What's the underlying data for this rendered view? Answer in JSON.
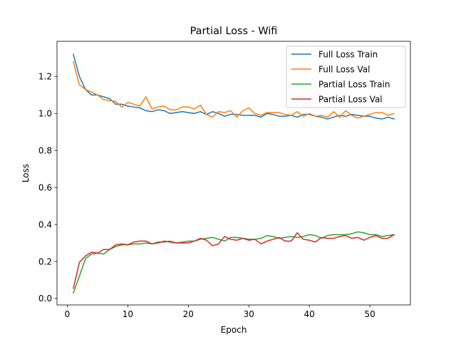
{
  "chart_data": {
    "type": "line",
    "title": "Partial Loss - Wifi",
    "xlabel": "Epoch",
    "ylabel": "Loss",
    "xlim": [
      -1.7,
      56.7
    ],
    "ylim": [
      -0.035,
      1.39
    ],
    "x_ticks": [
      0,
      10,
      20,
      30,
      40,
      50
    ],
    "y_ticks": [
      0.0,
      0.2,
      0.4,
      0.6,
      0.8,
      1.0,
      1.2
    ],
    "x_tick_labels": [
      "0",
      "10",
      "20",
      "30",
      "40",
      "50"
    ],
    "y_tick_labels": [
      "0.0",
      "0.2",
      "0.4",
      "0.6",
      "0.8",
      "1.0",
      "1.2"
    ],
    "grid": false,
    "legend_position": "upper right",
    "x": [
      1,
      2,
      3,
      4,
      5,
      6,
      7,
      8,
      9,
      10,
      11,
      12,
      13,
      14,
      15,
      16,
      17,
      18,
      19,
      20,
      21,
      22,
      23,
      24,
      25,
      26,
      27,
      28,
      29,
      30,
      31,
      32,
      33,
      34,
      35,
      36,
      37,
      38,
      39,
      40,
      41,
      42,
      43,
      44,
      45,
      46,
      47,
      48,
      49,
      50,
      51,
      52,
      53,
      54
    ],
    "series": [
      {
        "name": "Full Loss Train",
        "color": "#1f77b4",
        "values": [
          1.32,
          1.2,
          1.13,
          1.1,
          1.1,
          1.09,
          1.08,
          1.05,
          1.05,
          1.04,
          1.035,
          1.03,
          1.015,
          1.01,
          1.02,
          1.015,
          1.0,
          1.005,
          1.01,
          1.005,
          1.0,
          1.01,
          0.995,
          1.01,
          1.0,
          0.985,
          0.995,
          0.995,
          0.99,
          0.99,
          0.99,
          0.98,
          1.0,
          0.995,
          0.985,
          0.985,
          0.99,
          0.98,
          0.995,
          0.995,
          0.985,
          0.98,
          0.97,
          0.98,
          0.99,
          0.985,
          0.995,
          0.99,
          0.985,
          0.985,
          0.975,
          0.97,
          0.98,
          0.97
        ]
      },
      {
        "name": "Full Loss Val",
        "color": "#ff7f0e",
        "values": [
          1.28,
          1.155,
          1.13,
          1.115,
          1.1,
          1.075,
          1.07,
          1.065,
          1.035,
          1.06,
          1.05,
          1.04,
          1.09,
          1.025,
          1.035,
          1.04,
          1.02,
          1.02,
          1.035,
          1.035,
          1.025,
          1.045,
          0.995,
          0.98,
          1.01,
          1.005,
          1.015,
          0.98,
          1.015,
          1.03,
          1.0,
          0.99,
          1.005,
          1.005,
          1.005,
          0.995,
          0.99,
          1.01,
          0.985,
          1.0,
          0.985,
          0.99,
          0.98,
          1.01,
          0.98,
          1.015,
          0.99,
          0.975,
          0.985,
          0.995,
          1.005,
          1.005,
          0.99,
          1.0
        ]
      },
      {
        "name": "Partial Loss Train",
        "color": "#2ca02c",
        "values": [
          0.03,
          0.12,
          0.215,
          0.24,
          0.245,
          0.24,
          0.265,
          0.28,
          0.29,
          0.29,
          0.295,
          0.295,
          0.3,
          0.295,
          0.305,
          0.305,
          0.31,
          0.3,
          0.305,
          0.31,
          0.31,
          0.32,
          0.325,
          0.33,
          0.32,
          0.31,
          0.33,
          0.33,
          0.325,
          0.32,
          0.32,
          0.325,
          0.34,
          0.335,
          0.325,
          0.33,
          0.335,
          0.33,
          0.335,
          0.345,
          0.34,
          0.325,
          0.34,
          0.345,
          0.345,
          0.345,
          0.35,
          0.36,
          0.355,
          0.345,
          0.345,
          0.335,
          0.34,
          0.345
        ]
      },
      {
        "name": "Partial Loss Val",
        "color": "#d62728",
        "values": [
          0.055,
          0.195,
          0.23,
          0.25,
          0.245,
          0.265,
          0.265,
          0.29,
          0.295,
          0.29,
          0.305,
          0.31,
          0.31,
          0.295,
          0.3,
          0.31,
          0.305,
          0.3,
          0.3,
          0.3,
          0.31,
          0.325,
          0.315,
          0.285,
          0.295,
          0.335,
          0.32,
          0.315,
          0.325,
          0.315,
          0.32,
          0.295,
          0.31,
          0.32,
          0.33,
          0.31,
          0.31,
          0.355,
          0.32,
          0.315,
          0.305,
          0.33,
          0.325,
          0.325,
          0.335,
          0.34,
          0.325,
          0.33,
          0.315,
          0.33,
          0.34,
          0.325,
          0.325,
          0.345
        ]
      }
    ]
  }
}
